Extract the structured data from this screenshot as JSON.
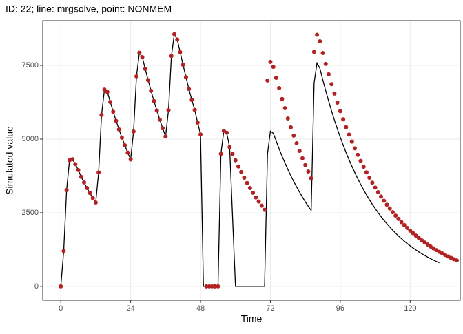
{
  "chart_data": {
    "type": "line",
    "title": "ID: 22; line: mrgsolve, point: NONMEM",
    "x_label": "Time",
    "y_label": "Simulated value",
    "xlim": [
      -6.2,
      137.2
    ],
    "ylim": [
      -470,
      9020
    ],
    "xticks": [
      0,
      24,
      48,
      72,
      96,
      120
    ],
    "yticks": [
      0,
      2500,
      5000,
      7500
    ],
    "grid": true,
    "series": [
      {
        "style": "line",
        "color": "#000000",
        "x": [
          0,
          1,
          2,
          3,
          4,
          5,
          6,
          7,
          8,
          9,
          10,
          11,
          12,
          13,
          14,
          15,
          16,
          17,
          18,
          19,
          20,
          21,
          22,
          23,
          24,
          25,
          26,
          27,
          28,
          29,
          30,
          31,
          32,
          33,
          34,
          35,
          36,
          37,
          38,
          39,
          40,
          41,
          42,
          43,
          44,
          45,
          46,
          47,
          48,
          49,
          50,
          51,
          52,
          53,
          54,
          55,
          56,
          57,
          58,
          60,
          61,
          62,
          63,
          64,
          65,
          66,
          67,
          68,
          69,
          70,
          71,
          72,
          73,
          74,
          75,
          76,
          77,
          78,
          79,
          80,
          81,
          82,
          83,
          84,
          85,
          86,
          87,
          88,
          89,
          90,
          91,
          92,
          93,
          94,
          95,
          96,
          97,
          98,
          99,
          100,
          101,
          102,
          103,
          104,
          105,
          106,
          107,
          108,
          109,
          110,
          111,
          112,
          113,
          114,
          115,
          116,
          117,
          118,
          119,
          120,
          121,
          122,
          123,
          124,
          125,
          126,
          127,
          128,
          129,
          130
        ],
        "values": [
          0,
          1200,
          3270,
          4280,
          4320,
          4150,
          3950,
          3720,
          3530,
          3340,
          3170,
          3000,
          2850,
          3870,
          5820,
          6680,
          6600,
          6260,
          5930,
          5620,
          5330,
          5050,
          4790,
          4540,
          4310,
          5260,
          7130,
          7930,
          7780,
          7380,
          7000,
          6640,
          6290,
          5970,
          5660,
          5370,
          5090,
          5980,
          7820,
          8560,
          8380,
          7950,
          7520,
          7100,
          6700,
          6330,
          5990,
          5560,
          5160,
          0,
          0,
          0,
          0,
          0,
          0,
          4500,
          5280,
          5200,
          4730,
          0,
          0,
          0,
          0,
          0,
          0,
          0,
          0,
          0,
          0,
          0,
          4500,
          5270,
          5200,
          4930,
          4670,
          4420,
          4190,
          3970,
          3760,
          3560,
          3380,
          3200,
          3030,
          2870,
          2720,
          2580,
          6900,
          7580,
          7400,
          7009,
          6639,
          6289,
          5957,
          5642,
          5344,
          5062,
          4795,
          4542,
          4302,
          4075,
          3860,
          3656,
          3463,
          3280,
          3107,
          2943,
          2788,
          2641,
          2501,
          2369,
          2244,
          2126,
          2014,
          1907,
          1807,
          1711,
          1621,
          1535,
          1454,
          1378,
          1305,
          1236,
          1171,
          1109,
          1051,
          995,
          943,
          893,
          846,
          801
        ]
      },
      {
        "style": "points",
        "color": "#b22222",
        "x": [
          0,
          1,
          2,
          3,
          4,
          5,
          6,
          7,
          8,
          9,
          10,
          11,
          12,
          13,
          14,
          15,
          16,
          17,
          18,
          19,
          20,
          21,
          22,
          23,
          24,
          25,
          26,
          27,
          28,
          29,
          30,
          31,
          32,
          33,
          34,
          35,
          36,
          37,
          38,
          39,
          40,
          41,
          42,
          43,
          44,
          45,
          46,
          47,
          48,
          50,
          51,
          52,
          53,
          54,
          55,
          56,
          57,
          58,
          59,
          60,
          61,
          62,
          63,
          64,
          65,
          66,
          67,
          68,
          69,
          70,
          71,
          72,
          73,
          74,
          75,
          76,
          77,
          78,
          79,
          80,
          81,
          82,
          83,
          84,
          85,
          86,
          87,
          88,
          89,
          90,
          91,
          92,
          93,
          94,
          95,
          96,
          97,
          98,
          99,
          100,
          101,
          102,
          103,
          104,
          105,
          106,
          107,
          108,
          109,
          110,
          111,
          112,
          113,
          114,
          115,
          116,
          117,
          118,
          119,
          120,
          121,
          122,
          123,
          124,
          125,
          126,
          127,
          128,
          129,
          130,
          131,
          132,
          133,
          134,
          135,
          136
        ],
        "values": [
          0,
          1200,
          3270,
          4280,
          4320,
          4150,
          3950,
          3720,
          3530,
          3340,
          3170,
          3000,
          2850,
          3870,
          5820,
          6680,
          6600,
          6260,
          5930,
          5620,
          5330,
          5050,
          4790,
          4540,
          4310,
          5260,
          7130,
          7930,
          7780,
          7380,
          7000,
          6640,
          6290,
          5970,
          5660,
          5370,
          5090,
          5980,
          7820,
          8560,
          8380,
          7950,
          7520,
          7100,
          6700,
          6330,
          5990,
          5560,
          5160,
          0,
          0,
          0,
          0,
          0,
          4500,
          5280,
          5220,
          4730,
          4500,
          4280,
          4070,
          3880,
          3690,
          3510,
          3340,
          3180,
          3020,
          2880,
          2740,
          2600,
          6990,
          7620,
          7450,
          7080,
          6730,
          6360,
          6050,
          5700,
          5400,
          5120,
          4860,
          4600,
          4350,
          4120,
          3900,
          3670,
          7960,
          8540,
          8320,
          7920,
          7551,
          7199,
          6864,
          6544,
          6239,
          5948,
          5671,
          5407,
          5155,
          4915,
          4686,
          4468,
          4260,
          4061,
          3872,
          3692,
          3520,
          3356,
          3200,
          3050,
          2908,
          2773,
          2644,
          2520,
          2403,
          2291,
          2184,
          2082,
          1985,
          1893,
          1805,
          1721,
          1640,
          1564,
          1491,
          1422,
          1355,
          1292,
          1232,
          1175,
          1120,
          1068,
          1018,
          971,
          925,
          882
        ]
      }
    ]
  }
}
